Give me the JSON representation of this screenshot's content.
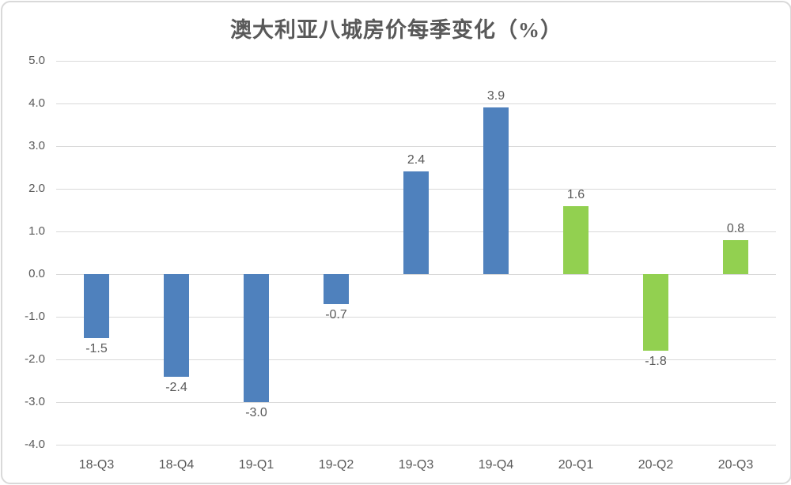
{
  "chart_data": {
    "type": "bar",
    "title": "澳大利亚八城房价每季变化（%）",
    "categories": [
      "18-Q3",
      "18-Q4",
      "19-Q1",
      "19-Q2",
      "19-Q3",
      "19-Q4",
      "20-Q1",
      "20-Q2",
      "20-Q3"
    ],
    "values": [
      -1.5,
      -2.4,
      -3.0,
      -0.7,
      2.4,
      3.9,
      1.6,
      -1.8,
      0.8
    ],
    "data_labels": [
      "-1.5",
      "-2.4",
      "-3.0",
      "-0.7",
      "2.4",
      "3.9",
      "1.6",
      "-1.8",
      "0.8"
    ],
    "point_colors": [
      "#4F81BD",
      "#4F81BD",
      "#4F81BD",
      "#4F81BD",
      "#4F81BD",
      "#4F81BD",
      "#92D050",
      "#92D050",
      "#92D050"
    ],
    "xlabel": "",
    "ylabel": "",
    "ylim": [
      -4.0,
      5.0
    ],
    "ytick_step": 1.0,
    "ytick_labels": [
      "5.0",
      "4.0",
      "3.0",
      "2.0",
      "1.0",
      "0.0",
      "-1.0",
      "-2.0",
      "-3.0",
      "-4.0"
    ],
    "grid": true,
    "legend": "none",
    "colors": {
      "bar_blue": "#4F81BD",
      "bar_green": "#92D050",
      "gridline": "#D9D9D9",
      "text": "#595959",
      "frame_border": "#D9D9D9"
    }
  }
}
